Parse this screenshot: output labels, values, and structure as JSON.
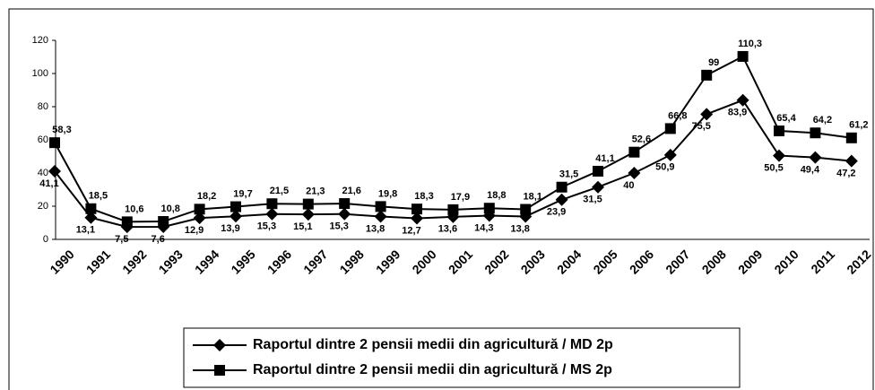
{
  "chart_data": {
    "type": "line",
    "categories": [
      "1990",
      "1991",
      "1992",
      "1993",
      "1994",
      "1995",
      "1996",
      "1997",
      "1998",
      "1999",
      "2000",
      "2001",
      "2002",
      "2003",
      "2004",
      "2005",
      "2006",
      "2007",
      "2008",
      "2009",
      "2010",
      "2011",
      "2012"
    ],
    "series": [
      {
        "name": "Raportul dintre 2 pensii medii din agricultură / MD 2p",
        "color": "#000000",
        "marker": "diamond",
        "values": [
          41.1,
          13.1,
          7.5,
          7.6,
          12.9,
          13.9,
          15.3,
          15.1,
          15.3,
          13.8,
          12.7,
          13.6,
          14.3,
          13.8,
          23.9,
          31.5,
          40,
          50.9,
          75.5,
          83.9,
          50.5,
          49.4,
          47.2
        ],
        "value_labels": [
          "41,1",
          "13,1",
          "7,5",
          "7,6",
          "12,9",
          "13,9",
          "15,3",
          "15,1",
          "15,3",
          "13,8",
          "12,7",
          "13,6",
          "14,3",
          "13,8",
          "23,9",
          "31,5",
          "40",
          "50,9",
          "75,5",
          "83,9",
          "50,5",
          "49,4",
          "47,2"
        ]
      },
      {
        "name": "Raportul dintre 2 pensii medii din agricultură / MS 2p",
        "color": "#000000",
        "marker": "square",
        "values": [
          58.3,
          18.5,
          10.6,
          10.8,
          18.2,
          19.7,
          21.5,
          21.3,
          21.6,
          19.8,
          18.3,
          17.9,
          18.8,
          18.1,
          31.5,
          41.1,
          52.6,
          66.8,
          99,
          110.3,
          65.4,
          64.2,
          61.2
        ],
        "value_labels": [
          "58,3",
          "18,5",
          "10,6",
          "10,8",
          "18,2",
          "19,7",
          "21,5",
          "21,3",
          "21,6",
          "19,8",
          "18,3",
          "17,9",
          "18,8",
          "18,1",
          "31,5",
          "41,1",
          "52,6",
          "66,8",
          "99",
          "110,3",
          "65,4",
          "64,2",
          "61,2"
        ]
      }
    ],
    "ylim": [
      0,
      120
    ],
    "yticks": [
      0,
      20,
      40,
      60,
      80,
      100,
      120
    ]
  }
}
